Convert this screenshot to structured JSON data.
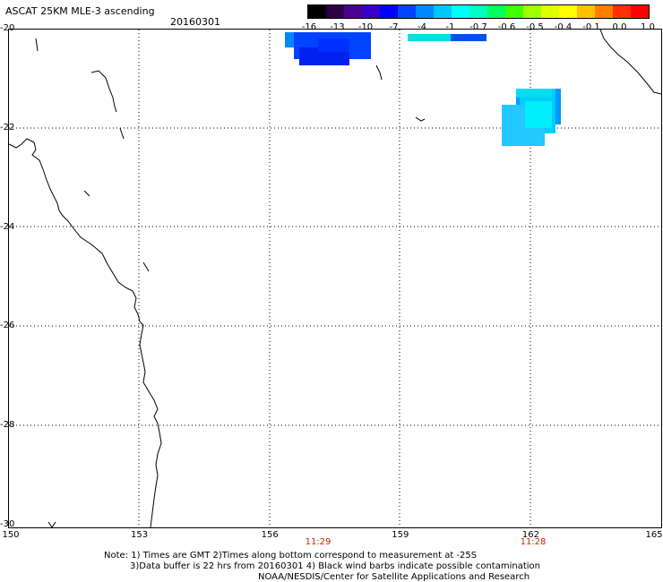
{
  "header": {
    "title": "ASCAT 25KM MLE-3 ascending",
    "date": "20160301"
  },
  "colorbar": {
    "labels": [
      "-16",
      "-13",
      "-10",
      "-7",
      "-4",
      "-1",
      "-0.7",
      "-0.6",
      "-0.5",
      "-0.4",
      "-0.1",
      "0.0",
      "1.0"
    ],
    "colors": [
      "#000000",
      "#2a0040",
      "#4b0090",
      "#3a00c8",
      "#0000ff",
      "#0044ff",
      "#0088ff",
      "#00c8ff",
      "#00ffff",
      "#00ffc0",
      "#00ff60",
      "#40ff00",
      "#a0ff00",
      "#e0ff00",
      "#ffff00",
      "#ffc000",
      "#ff8000",
      "#ff3000",
      "#ff0000"
    ]
  },
  "map": {
    "lat_labels": [
      "-20",
      "-22",
      "-24",
      "-26",
      "-28",
      "-30"
    ],
    "lon_labels": [
      "150",
      "153",
      "156",
      "159",
      "162",
      "165"
    ],
    "pass_times": [
      "11:29",
      "11:28"
    ],
    "lon_range": [
      150,
      165
    ],
    "lat_range": [
      -20,
      -30
    ]
  },
  "footer": {
    "line1": "Note: 1) Times are GMT 2)Times along bottom correspond to measurement at -25S",
    "line2": "3)Data buffer is 22 hrs from 20160301 4) Black wind barbs indicate possible contamination",
    "line3": "NOAA/NESDIS/Center for Satellite Applications and Research"
  }
}
